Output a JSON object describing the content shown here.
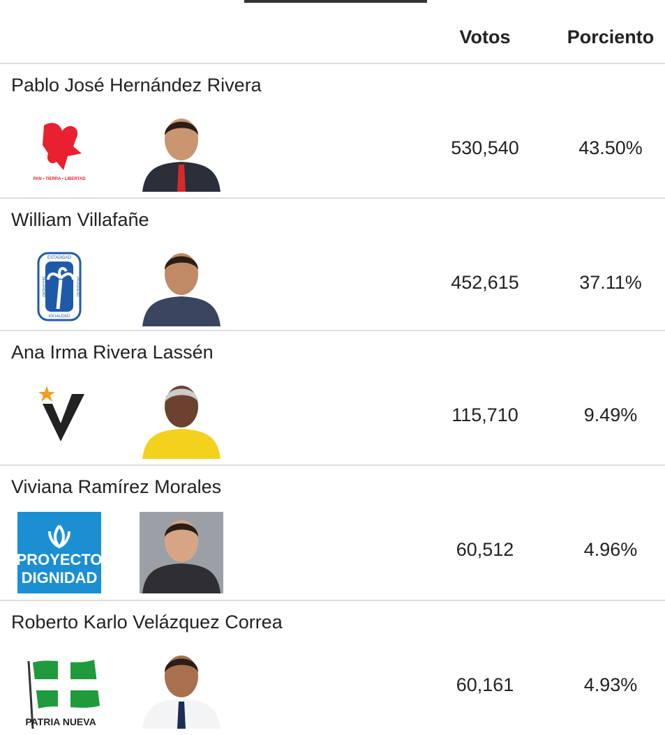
{
  "header": {
    "columns": [
      "Votos",
      "Porciento"
    ]
  },
  "candidates": [
    {
      "name": "Pablo José Hernández Rivera",
      "votes": "530,540",
      "percent": "43.50%",
      "logo_text": [
        "PAN • TIERRA • LIBERTAD"
      ]
    },
    {
      "name": "William Villafañe",
      "votes": "452,615",
      "percent": "37.11%",
      "logo_text": [
        "ESTADIDAD",
        "SEGURIDAD",
        "PROGRESO",
        "IGUALDAD"
      ]
    },
    {
      "name": "Ana Irma Rivera Lassén",
      "votes": "115,710",
      "percent": "9.49%"
    },
    {
      "name": "Viviana Ramírez Morales",
      "votes": "60,512",
      "percent": "4.96%",
      "logo_text": [
        "PROYECTO",
        "DIGNIDAD"
      ]
    },
    {
      "name": "Roberto Karlo Velázquez Correa",
      "votes": "60,161",
      "percent": "4.93%",
      "logo_text": [
        "PATRIA NUEVA"
      ]
    }
  ]
}
